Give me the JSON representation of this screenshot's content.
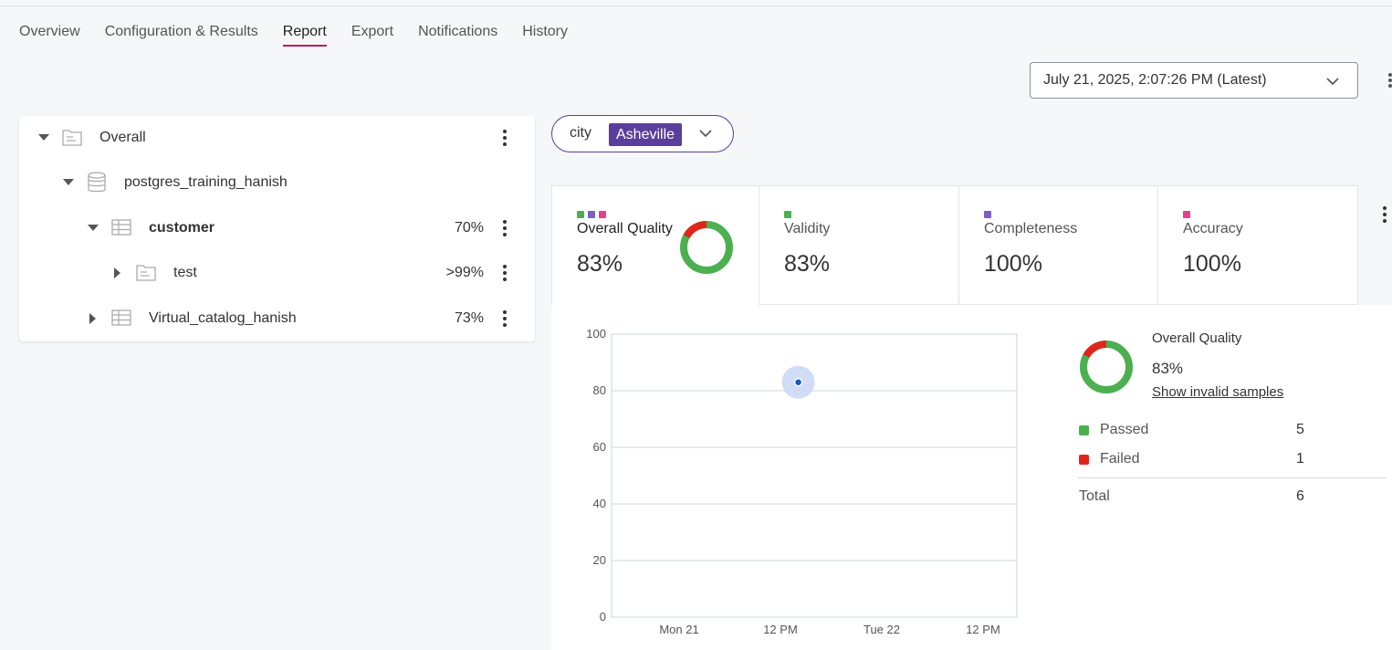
{
  "tabs": [
    "Overview",
    "Configuration & Results",
    "Report",
    "Export",
    "Notifications",
    "History"
  ],
  "active_tab": "Report",
  "date_select": {
    "value": "July 21, 2025, 2:07:26 PM (Latest)"
  },
  "tree": [
    {
      "label": "Overall",
      "pct": "",
      "expanded": true,
      "icon": "folder-icon",
      "bold": false
    },
    {
      "label": "postgres_training_hanish",
      "pct": "",
      "expanded": true,
      "icon": "database-icon",
      "bold": false
    },
    {
      "label": "customer",
      "pct": "70%",
      "expanded": true,
      "icon": "table-icon",
      "bold": true
    },
    {
      "label": "test",
      "pct": ">99%",
      "expanded": false,
      "icon": "folder-icon",
      "bold": false
    },
    {
      "label": "Virtual_catalog_hanish",
      "pct": "73%",
      "expanded": false,
      "icon": "table-icon",
      "bold": false
    }
  ],
  "filter": {
    "key": "city",
    "value": "Asheville"
  },
  "cards": [
    {
      "title": "Overall Quality",
      "value": "83%",
      "markers": [
        "#4caf50",
        "#7e5fc4",
        "#e83e8c"
      ]
    },
    {
      "title": "Validity",
      "value": "83%",
      "markers": [
        "#4caf50"
      ]
    },
    {
      "title": "Completeness",
      "value": "100%",
      "markers": [
        "#7e5fc4"
      ]
    },
    {
      "title": "Accuracy",
      "value": "100%",
      "markers": [
        "#e83e8c"
      ]
    }
  ],
  "colors": {
    "passed": "#4caf50",
    "failed": "#e0261a",
    "accent": "#5b3e9c",
    "tab_underline": "#c2185b",
    "point": "#1a56c9"
  },
  "summary": {
    "title": "Overall Quality",
    "pct": "83%",
    "link": "Show invalid samples",
    "passed_label": "Passed",
    "passed_value": "5",
    "failed_label": "Failed",
    "failed_value": "1",
    "total_label": "Total",
    "total_value": "6"
  },
  "chart_data": {
    "type": "scatter",
    "title": "",
    "xlabel": "",
    "ylabel": "",
    "x_ticks": [
      "Mon 21",
      "12 PM",
      "Tue 22",
      "12 PM"
    ],
    "y_ticks": [
      0,
      20,
      40,
      60,
      80,
      100
    ],
    "ylim": [
      0,
      100
    ],
    "grid": true,
    "series": [
      {
        "points": [
          {
            "x": "2025-07-21 14:07",
            "y": 83
          }
        ]
      }
    ]
  }
}
